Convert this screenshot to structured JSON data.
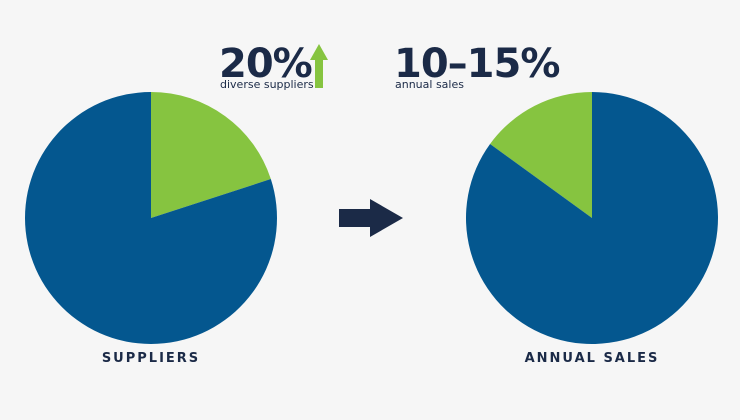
{
  "colors": {
    "primary": "#04578f",
    "accent": "#86c440",
    "text": "#1b2a47",
    "background": "#f6f6f6"
  },
  "stats": {
    "suppliers": {
      "value": "20%",
      "caption": "diverse suppliers",
      "trend_icon": "up-arrow-icon"
    },
    "sales": {
      "value": "10–15%",
      "caption": "annual sales"
    }
  },
  "transition_icon": "right-arrow-icon",
  "chart_data": [
    {
      "type": "pie",
      "title": "SUPPLIERS",
      "slices": [
        {
          "value": 20,
          "color": "#86c440"
        },
        {
          "value": 80,
          "color": "#04578f"
        }
      ]
    },
    {
      "type": "pie",
      "title": "ANNUAL SALES",
      "slices": [
        {
          "value": 15,
          "color": "#86c440"
        },
        {
          "value": 85,
          "color": "#04578f"
        }
      ]
    }
  ]
}
